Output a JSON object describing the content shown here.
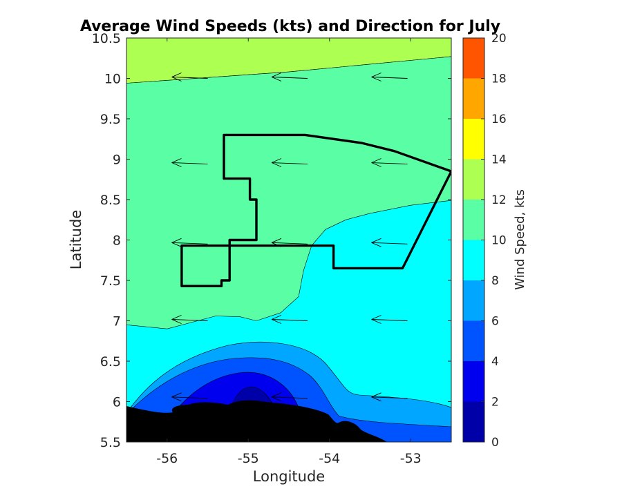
{
  "chart_data": {
    "type": "contour",
    "title": "Average Wind Speeds (kts) and Direction for July",
    "xlabel": "Longitude",
    "ylabel": "Latitude",
    "xlim": [
      -56.5,
      -52.5
    ],
    "ylim": [
      5.5,
      10.5
    ],
    "x_ticks": [
      -56,
      -55,
      -54,
      -53
    ],
    "y_ticks": [
      5.5,
      6,
      6.5,
      7,
      7.5,
      8,
      8.5,
      9,
      9.5,
      10,
      10.5
    ],
    "x_tick_labels": [
      "-56",
      "-55",
      "-54",
      "-53"
    ],
    "y_tick_labels": [
      "5.5",
      "6",
      "6.5",
      "7",
      "7.5",
      "8",
      "8.5",
      "9",
      "9.5",
      "10",
      "10.5"
    ],
    "colorbar": {
      "label": "Wind Speed, kts",
      "range": [
        0,
        20
      ],
      "levels": [
        0,
        2,
        4,
        6,
        8,
        10,
        12,
        14,
        16,
        18,
        20
      ],
      "tick_labels": [
        "0",
        "2",
        "4",
        "6",
        "8",
        "10",
        "12",
        "14",
        "16",
        "18",
        "20"
      ],
      "colors": [
        "#0000a8",
        "#0000ef",
        "#0054ff",
        "#00a6ff",
        "#00ffff",
        "#5affa5",
        "#adff52",
        "#ffff00",
        "#ffa600",
        "#ff5400"
      ]
    },
    "contour_regions": [
      {
        "level": [
          12,
          14
        ],
        "color": "#adff52",
        "boundary": [
          [
            -56.5,
            10.5
          ],
          [
            -52.5,
            10.5
          ],
          [
            -52.5,
            10.27
          ],
          [
            -54.5,
            10.08
          ],
          [
            -56.5,
            9.94
          ]
        ]
      },
      {
        "level": [
          10,
          12
        ],
        "color": "#5affa5",
        "boundary": [
          [
            -56.5,
            9.94
          ],
          [
            -54.5,
            10.08
          ],
          [
            -52.5,
            10.27
          ],
          [
            -52.5,
            8.49
          ],
          [
            -53,
            8.43
          ],
          [
            -53.5,
            8.33
          ],
          [
            -53.8,
            8.25
          ],
          [
            -54.05,
            8.13
          ],
          [
            -54.22,
            7.93
          ],
          [
            -54.32,
            7.62
          ],
          [
            -54.38,
            7.3
          ],
          [
            -54.6,
            7.1
          ],
          [
            -54.9,
            7.0
          ],
          [
            -55.1,
            7.05
          ],
          [
            -55.4,
            7.06
          ],
          [
            -56.0,
            6.9
          ],
          [
            -56.5,
            6.95
          ]
        ]
      }
    ],
    "vectors": {
      "label": "wind direction",
      "lons": [
        -55.5,
        -54.27,
        -53.04
      ],
      "lats": [
        10.0,
        8.94,
        7.95,
        7.0,
        6.04
      ],
      "u_kts": -4.0,
      "v_kts": 0.0
    },
    "polygon_track": [
      [
        -55.3,
        9.3
      ],
      [
        -54.3,
        9.3
      ],
      [
        -53.6,
        9.2
      ],
      [
        -53.2,
        9.1
      ],
      [
        -52.5,
        8.85
      ],
      [
        -53.1,
        7.65
      ],
      [
        -53.5,
        7.65
      ],
      [
        -53.95,
        7.65
      ],
      [
        -53.95,
        7.93
      ],
      [
        -54.4,
        7.93
      ],
      [
        -55.82,
        7.93
      ],
      [
        -55.82,
        7.43
      ],
      [
        -55.33,
        7.43
      ],
      [
        -55.33,
        7.5
      ],
      [
        -55.23,
        7.5
      ],
      [
        -55.23,
        8.0
      ],
      [
        -54.9,
        8.0
      ],
      [
        -54.9,
        8.5
      ],
      [
        -54.98,
        8.5
      ],
      [
        -54.98,
        8.76
      ],
      [
        -55.3,
        8.76
      ]
    ],
    "land": {
      "color": "#000000",
      "label": ""
    }
  }
}
